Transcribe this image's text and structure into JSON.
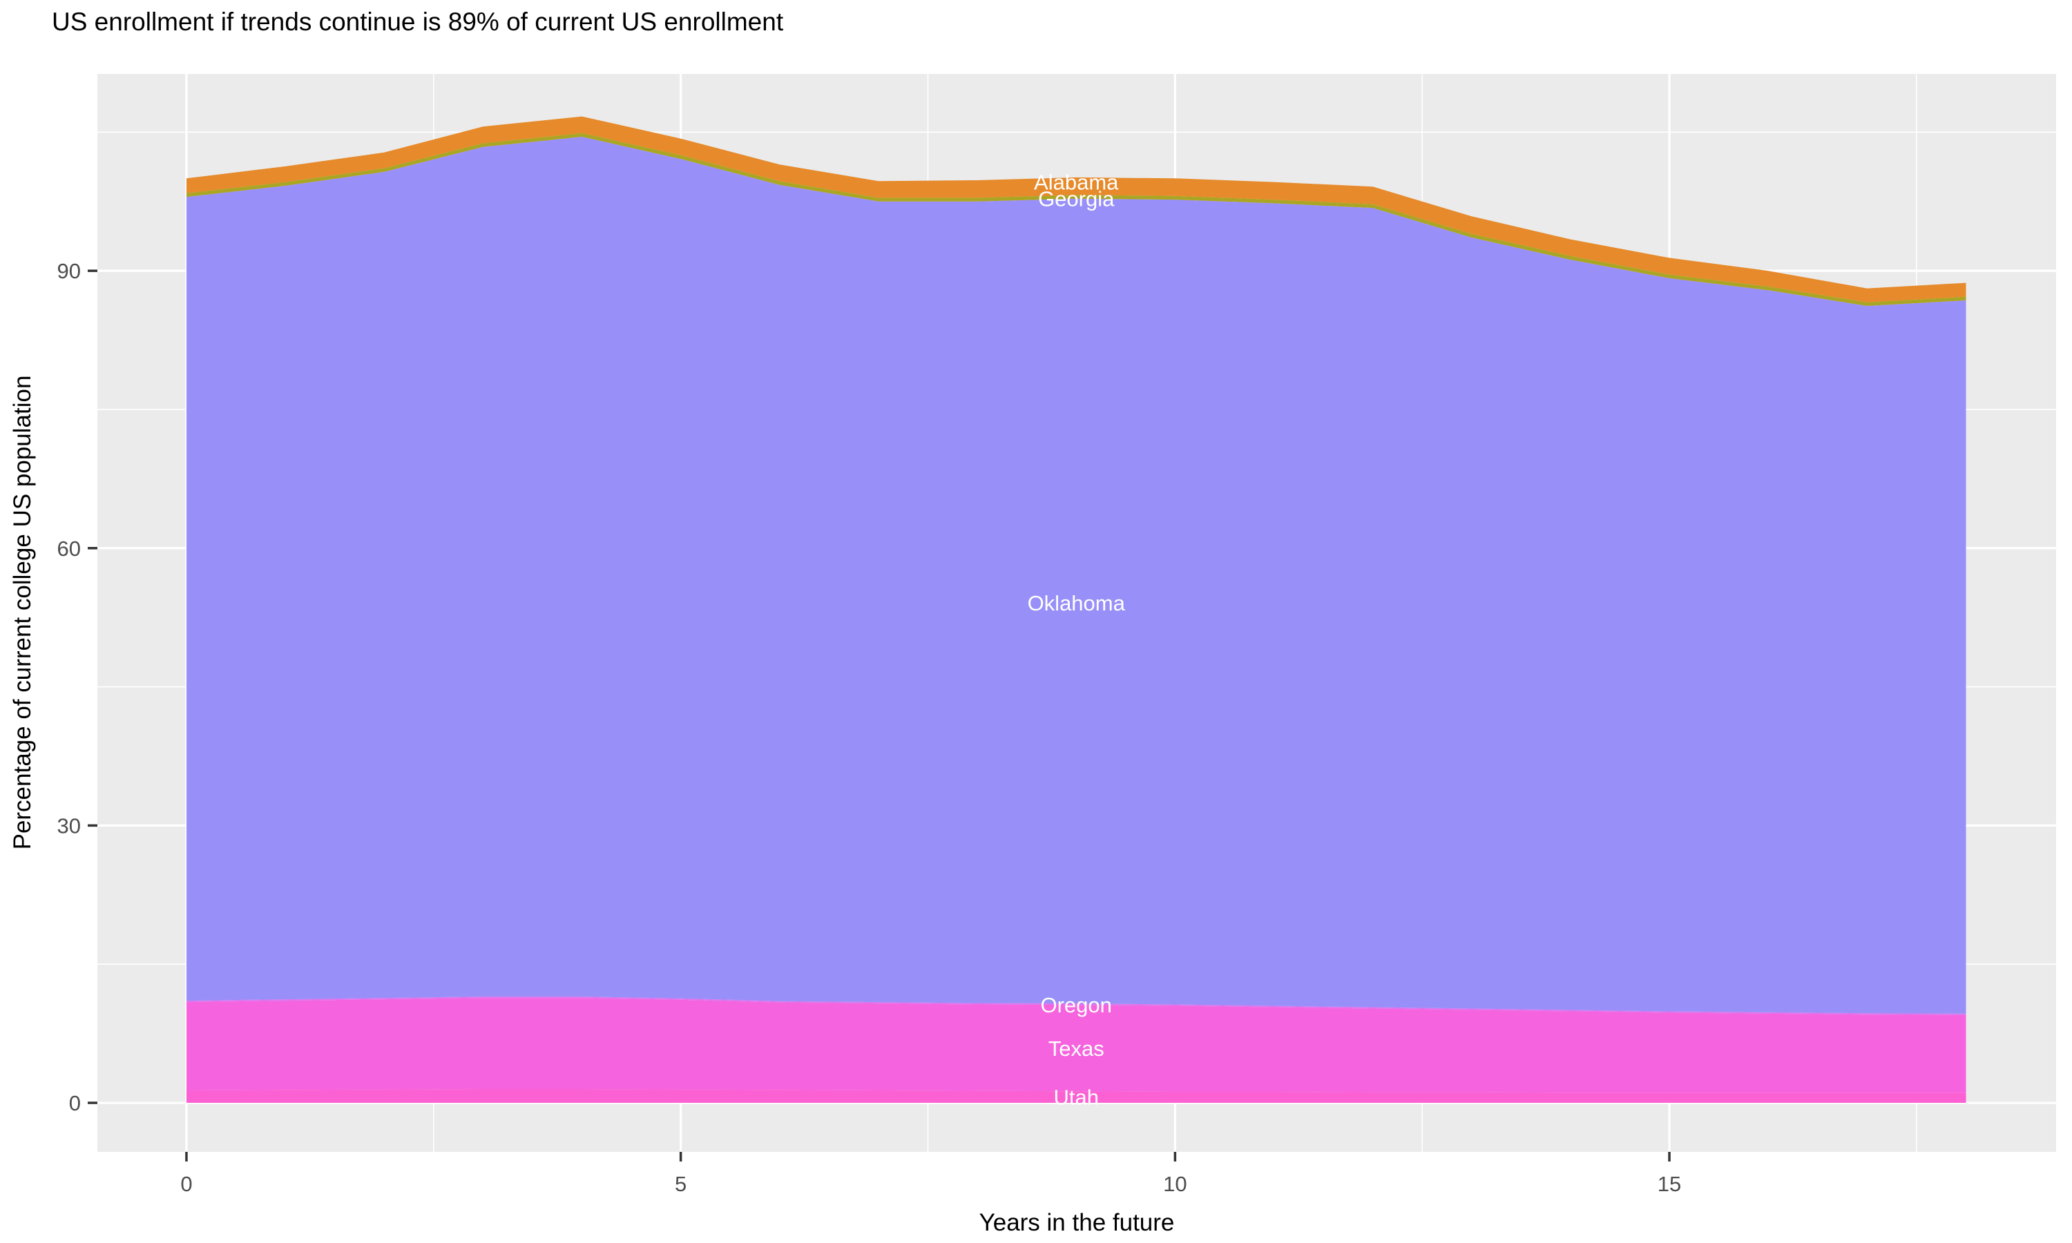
{
  "chart_data": {
    "type": "area",
    "stacked": true,
    "title": "US enrollment if trends continue is 89% of current US enrollment",
    "xlabel": "Years in the future",
    "ylabel": "Percentage of current college US population",
    "x": [
      0,
      1,
      2,
      3,
      4,
      5,
      6,
      7,
      8,
      9,
      10,
      11,
      12,
      13,
      14,
      15,
      16,
      17,
      18
    ],
    "series": [
      {
        "name": "Utah",
        "color": "#FB61D3",
        "values": [
          1.35,
          1.4,
          1.45,
          1.5,
          1.5,
          1.45,
          1.4,
          1.35,
          1.3,
          1.25,
          1.2,
          1.2,
          1.15,
          1.15,
          1.1,
          1.1,
          1.1,
          1.1,
          1.1
        ]
      },
      {
        "name": "Texas",
        "color": "#F564DE",
        "values": [
          9.55,
          9.65,
          9.75,
          9.85,
          9.85,
          9.7,
          9.45,
          9.4,
          9.35,
          9.35,
          9.3,
          9.15,
          9.05,
          8.9,
          8.8,
          8.65,
          8.55,
          8.45,
          8.4
        ]
      },
      {
        "name": "Oregon",
        "color": "#DD73F0",
        "values": [
          0.15,
          0.15,
          0.15,
          0.15,
          0.15,
          0.15,
          0.15,
          0.15,
          0.15,
          0.15,
          0.15,
          0.15,
          0.15,
          0.15,
          0.15,
          0.15,
          0.15,
          0.15,
          0.15
        ]
      },
      {
        "name": "Oklahoma",
        "color": "#9890F8",
        "values": [
          86.95,
          88.0,
          89.35,
          91.9,
          93.0,
          90.8,
          88.3,
          86.6,
          86.7,
          87.05,
          87.05,
          86.8,
          86.45,
          83.4,
          81.15,
          79.3,
          78.1,
          76.5,
          77.15
        ]
      },
      {
        "name": "Georgia",
        "color": "#ABA524",
        "values": [
          0.4,
          0.4,
          0.4,
          0.4,
          0.4,
          0.4,
          0.4,
          0.4,
          0.4,
          0.4,
          0.4,
          0.4,
          0.4,
          0.4,
          0.4,
          0.4,
          0.4,
          0.4,
          0.4
        ]
      },
      {
        "name": "Alabama",
        "color": "#E68A2B",
        "values": [
          1.6,
          1.7,
          1.7,
          1.8,
          1.8,
          1.8,
          1.8,
          1.8,
          1.9,
          1.9,
          1.9,
          1.9,
          1.9,
          1.9,
          1.8,
          1.8,
          1.7,
          1.5,
          1.5
        ]
      }
    ],
    "area_labels": [
      {
        "text": "Alabama",
        "x": 9,
        "y": 99.6
      },
      {
        "text": "Georgia",
        "x": 9,
        "y": 97.8
      },
      {
        "text": "Oklahoma",
        "x": 9,
        "y": 54.1
      },
      {
        "text": "Oregon",
        "x": 9,
        "y": 10.6
      },
      {
        "text": "Texas",
        "x": 9,
        "y": 5.9
      },
      {
        "text": "Utah",
        "x": 9,
        "y": 0.65
      }
    ],
    "x_ticks": [
      0,
      5,
      10,
      15
    ],
    "y_ticks": [
      0,
      30,
      60,
      90
    ],
    "x_minor": [
      2.5,
      7.5,
      12.5,
      17.5
    ],
    "y_minor": [
      15,
      45,
      75,
      105
    ],
    "xlim": [
      -0.901,
      18.912
    ],
    "ylim": [
      -5.3,
      111.3
    ],
    "grid": true,
    "legend_position": "none",
    "colors": {
      "panel_background": "#EBEBEB",
      "gridline": "#FFFFFF",
      "tick_label": "#4D4D4D",
      "tick_mark": "#333333",
      "axis_text": "#000000",
      "area_label_text": "#FFFFFF"
    }
  }
}
